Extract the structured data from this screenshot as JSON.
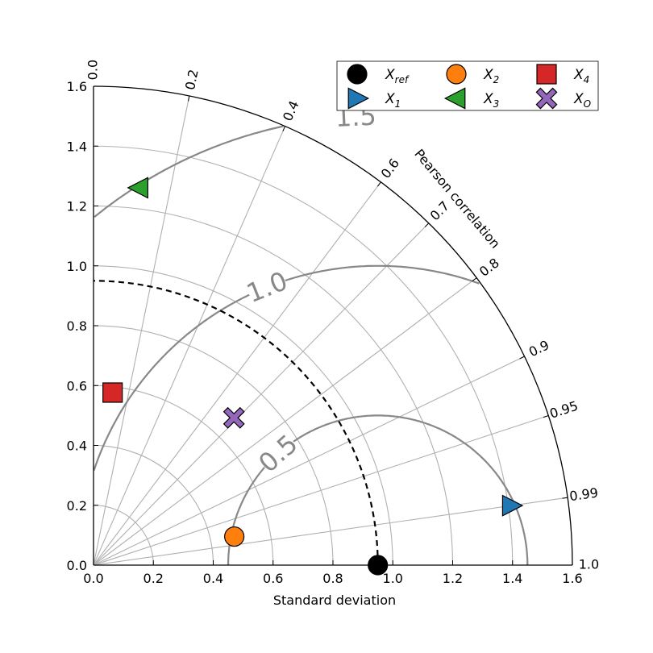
{
  "chart_data": {
    "type": "scatter",
    "subtype": "taylor-diagram",
    "xlabel": "Standard deviation",
    "corr_label": "Pearson correlation",
    "std_range": [
      0,
      1.6
    ],
    "std_ticks": [
      "0.0",
      "0.2",
      "0.4",
      "0.6",
      "0.8",
      "1.0",
      "1.2",
      "1.4",
      "1.6"
    ],
    "std_tick_values": [
      0,
      0.2,
      0.4,
      0.6,
      0.8,
      1.0,
      1.2,
      1.4,
      1.6
    ],
    "corr_ticks": [
      {
        "value": 0.0,
        "label": "0.0"
      },
      {
        "value": 0.2,
        "label": "0.2"
      },
      {
        "value": 0.4,
        "label": "0.4"
      },
      {
        "value": 0.6,
        "label": "0.6"
      },
      {
        "value": 0.7,
        "label": "0.7"
      },
      {
        "value": 0.8,
        "label": "0.8"
      },
      {
        "value": 0.9,
        "label": "0.9"
      },
      {
        "value": 0.95,
        "label": "0.95"
      },
      {
        "value": 0.99,
        "label": "0.99"
      },
      {
        "value": 1.0,
        "label": "1.0"
      }
    ],
    "reference_std": 0.95,
    "rms_contours": [
      {
        "value": 0.5,
        "label": "0.5"
      },
      {
        "value": 1.0,
        "label": "1.0"
      },
      {
        "value": 1.5,
        "label": "1.5"
      }
    ],
    "grid": true,
    "legend_position": "top-right",
    "series": [
      {
        "key": "Xref",
        "name": "X",
        "sub": "ref",
        "marker": "circle",
        "color": "#000000",
        "std": 0.95,
        "corr": 1.0
      },
      {
        "key": "X1",
        "name": "X",
        "sub": "1",
        "marker": "triangle-right",
        "color": "#1f77b4",
        "std": 1.41,
        "corr": 0.99
      },
      {
        "key": "X2",
        "name": "X",
        "sub": "2",
        "marker": "circle",
        "color": "#ff7f0e",
        "std": 0.48,
        "corr": 0.98
      },
      {
        "key": "X3",
        "name": "X",
        "sub": "3",
        "marker": "triangle-left",
        "color": "#2ca02c",
        "std": 1.27,
        "corr": 0.12
      },
      {
        "key": "X4",
        "name": "X",
        "sub": "4",
        "marker": "square",
        "color": "#d62728",
        "std": 0.58,
        "corr": 0.11
      },
      {
        "key": "XO",
        "name": "X",
        "sub": "O",
        "marker": "x",
        "color": "#9467bd",
        "std": 0.68,
        "corr": 0.69
      }
    ]
  }
}
